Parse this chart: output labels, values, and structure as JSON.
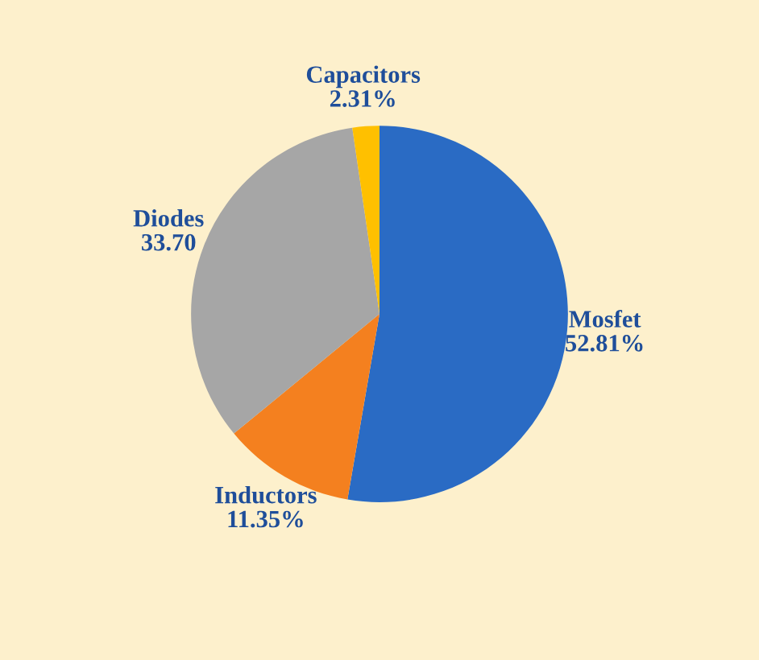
{
  "chart_data": {
    "type": "pie",
    "categories": [
      "Mosfet",
      "Inductors",
      "Diodes",
      "Capacitors"
    ],
    "values": [
      52.81,
      11.35,
      33.7,
      2.31
    ],
    "value_labels": [
      "52.81%",
      "11.35%",
      "33.70",
      "2.31%"
    ],
    "colors": [
      "#2a6bc4",
      "#f4801f",
      "#a6a6a6",
      "#ffc000"
    ],
    "legend": false
  }
}
